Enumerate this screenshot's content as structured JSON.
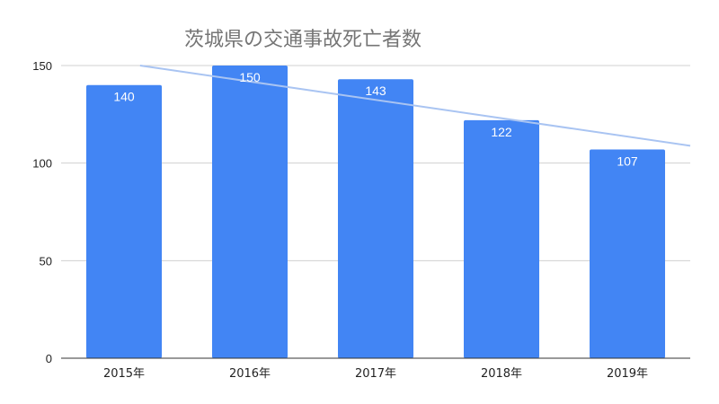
{
  "chart_data": {
    "type": "bar",
    "title": "茨城県の交通事故死亡者数",
    "categories": [
      "2015年",
      "2016年",
      "2017年",
      "2018年",
      "2019年"
    ],
    "values": [
      140,
      150,
      143,
      122,
      107
    ],
    "data_labels": [
      "140",
      "150",
      "143",
      "122",
      "107"
    ],
    "xlabel": "",
    "ylabel": "",
    "ylim": [
      0,
      150
    ],
    "yticks": [
      0,
      50,
      100,
      150
    ],
    "grid": true,
    "legend": "none",
    "trendline": {
      "type": "linear"
    },
    "colors": {
      "bars": "#4285f4",
      "trendline": "#a9c4f2",
      "grid": "#d0d0d0",
      "axis": "#333333"
    }
  }
}
